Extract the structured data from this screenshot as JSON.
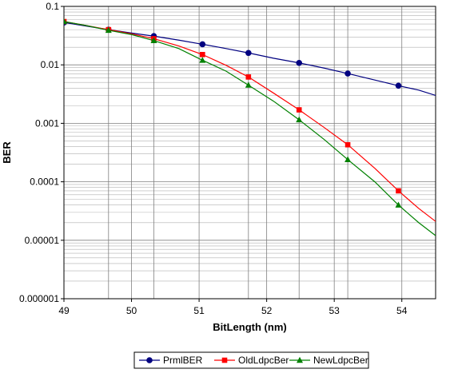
{
  "chart_data": {
    "type": "line",
    "title": "",
    "xlabel": "BitLength (nm)",
    "ylabel": "BER",
    "xlim": [
      49,
      54.5
    ],
    "ylim": [
      1e-06,
      0.1
    ],
    "yscale": "log",
    "grid": true,
    "legend_position": "bottom",
    "x_ticks": [
      49,
      50,
      51,
      52,
      53,
      54
    ],
    "x_tick_labels": [
      "49",
      "50",
      "51",
      "52",
      "53",
      "54"
    ],
    "y_ticks": [
      1e-06,
      1e-05,
      0.0001,
      0.001,
      0.01,
      0.1
    ],
    "y_tick_labels": [
      "0.000001",
      "0.00001",
      "0.0001",
      "0.001",
      "0.01",
      "0.1"
    ],
    "series": [
      {
        "name": "PrmlBER",
        "color": "#000080",
        "marker": "circle",
        "x": [
          49.0,
          49.66,
          50.33,
          51.05,
          51.73,
          52.48,
          53.2,
          53.95
        ],
        "y": [
          0.053,
          0.04,
          0.031,
          0.0225,
          0.016,
          0.0108,
          0.0071,
          0.0044
        ],
        "line_x": [
          49.0,
          49.33,
          49.66,
          50.0,
          50.33,
          50.7,
          51.05,
          51.4,
          51.73,
          52.1,
          52.48,
          52.85,
          53.2,
          53.6,
          53.95,
          54.25,
          54.5
        ],
        "line_y": [
          0.053,
          0.046,
          0.04,
          0.035,
          0.031,
          0.0265,
          0.0225,
          0.019,
          0.016,
          0.013,
          0.0108,
          0.0088,
          0.0071,
          0.0055,
          0.0044,
          0.0037,
          0.003
        ]
      },
      {
        "name": "OldLdpcBer",
        "color": "#ff0000",
        "marker": "square",
        "x": [
          49.0,
          49.66,
          50.33,
          51.05,
          51.73,
          52.48,
          53.2,
          53.95
        ],
        "y": [
          0.055,
          0.04,
          0.028,
          0.015,
          0.0062,
          0.0017,
          0.00043,
          7e-05
        ],
        "line_x": [
          49.0,
          49.33,
          49.66,
          50.0,
          50.33,
          50.7,
          51.05,
          51.4,
          51.73,
          52.1,
          52.48,
          52.85,
          53.2,
          53.6,
          53.95,
          54.25,
          54.5
        ],
        "line_y": [
          0.055,
          0.047,
          0.04,
          0.034,
          0.028,
          0.021,
          0.015,
          0.0098,
          0.0062,
          0.0033,
          0.0017,
          0.00085,
          0.00043,
          0.00017,
          7e-05,
          3.5e-05,
          2.1e-05
        ]
      },
      {
        "name": "NewLdpcBer",
        "color": "#008000",
        "marker": "triangle",
        "x": [
          49.0,
          49.66,
          50.33,
          51.05,
          51.73,
          52.48,
          53.2,
          53.95
        ],
        "y": [
          0.055,
          0.039,
          0.026,
          0.012,
          0.0045,
          0.00115,
          0.00024,
          4e-05
        ],
        "line_x": [
          49.0,
          49.33,
          49.66,
          50.0,
          50.33,
          50.7,
          51.05,
          51.4,
          51.73,
          52.1,
          52.48,
          52.85,
          53.2,
          53.6,
          53.95,
          54.25,
          54.5
        ],
        "line_y": [
          0.055,
          0.047,
          0.039,
          0.033,
          0.026,
          0.019,
          0.012,
          0.0078,
          0.0045,
          0.0024,
          0.00115,
          0.00053,
          0.00024,
          0.0001,
          4e-05,
          2e-05,
          1.2e-05
        ]
      }
    ]
  }
}
